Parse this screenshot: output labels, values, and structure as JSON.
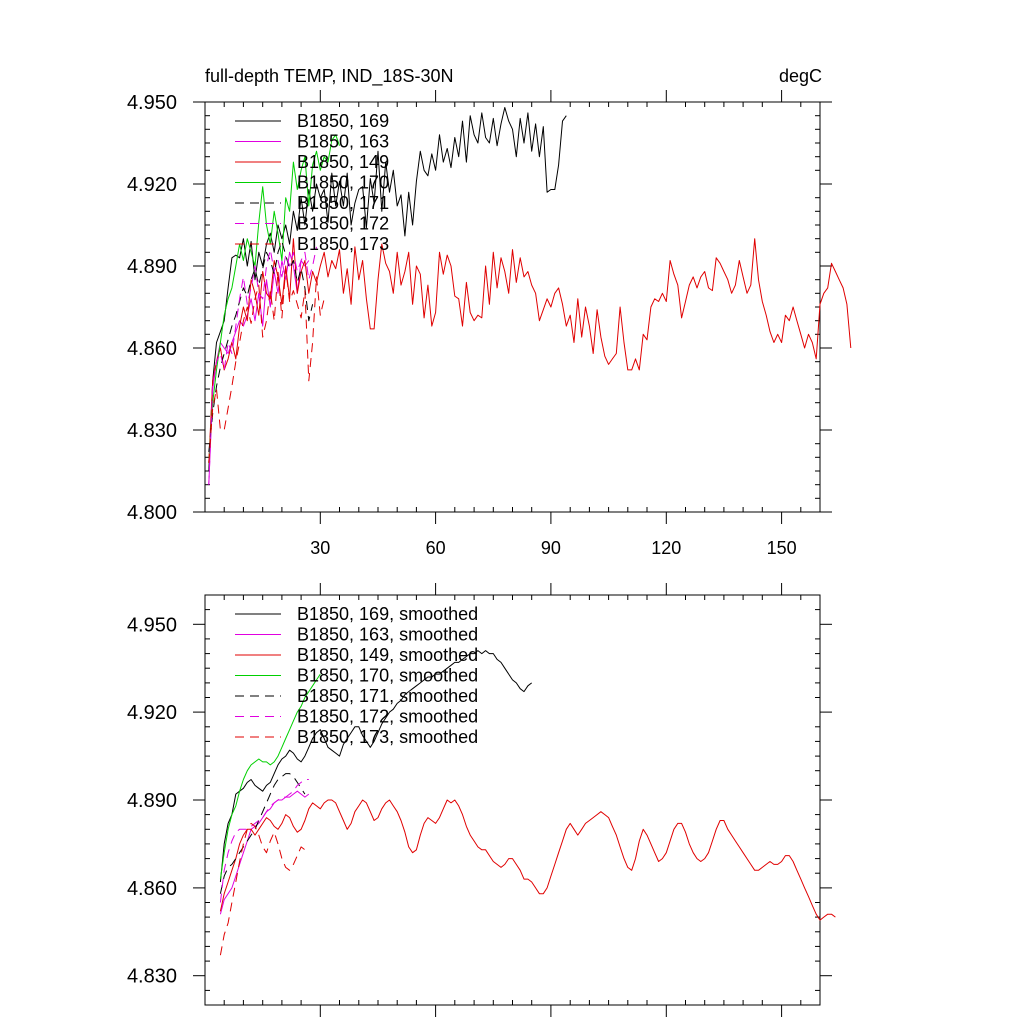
{
  "colors": {
    "black": "#000000",
    "magenta": "#e000e0",
    "red": "#e00000",
    "green": "#00d000"
  },
  "chart_data": [
    {
      "type": "line",
      "title": "full-depth TEMP, IND_18S-30N",
      "units": "degC",
      "xlim": [
        0,
        160
      ],
      "ylim": [
        4.8,
        4.95
      ],
      "xticks": [
        30,
        60,
        90,
        120,
        150
      ],
      "xtick_labels": [
        "30",
        "60",
        "90",
        "120",
        "150"
      ],
      "yticks": [
        4.8,
        4.83,
        4.86,
        4.89,
        4.92,
        4.95
      ],
      "ytick_labels": [
        "4.800",
        "4.830",
        "4.860",
        "4.890",
        "4.920",
        "4.950"
      ],
      "legend_position": "top-left",
      "series": [
        {
          "name": "B1850, 169",
          "color": "#000000",
          "dash": "solid",
          "x0": 1,
          "values": [
            4.815,
            4.848,
            4.862,
            4.866,
            4.87,
            4.882,
            4.893,
            4.894,
            4.893,
            4.9,
            4.89,
            4.899,
            4.885,
            4.895,
            4.89,
            4.898,
            4.902,
            4.895,
            4.905,
            4.9,
            4.905,
            4.898,
            4.91,
            4.903,
            4.915,
            4.905,
            4.918,
            4.91,
            4.92,
            4.915,
            4.918,
            4.906,
            4.924,
            4.912,
            4.921,
            4.912,
            4.924,
            4.905,
            4.913,
            4.918,
            4.919,
            4.904,
            4.922,
            4.913,
            4.932,
            4.91,
            4.928,
            4.917,
            4.925,
            4.912,
            4.916,
            4.901,
            4.917,
            4.905,
            4.921,
            4.932,
            4.925,
            4.923,
            4.931,
            4.925,
            4.938,
            4.928,
            4.933,
            4.926,
            4.937,
            4.93,
            4.943,
            4.928,
            4.945,
            4.938,
            4.935,
            4.946,
            4.937,
            4.935,
            4.944,
            4.934,
            4.942,
            4.948,
            4.943,
            4.94,
            4.93,
            4.944,
            4.935,
            4.946,
            4.932,
            4.942,
            4.93,
            4.941,
            4.917,
            4.918,
            4.918,
            4.927,
            4.943,
            4.945
          ]
        },
        {
          "name": "B1850, 163",
          "color": "#e000e0",
          "dash": "solid",
          "x0": 1,
          "values": [
            4.81,
            4.845,
            4.855,
            4.862,
            4.86,
            4.858,
            4.862,
            4.866,
            4.87,
            4.868,
            4.872,
            4.878,
            4.87,
            4.88,
            4.868,
            4.885,
            4.875,
            4.888,
            4.88,
            4.892,
            4.885,
            4.895,
            4.89,
            4.88,
            4.892,
            4.89,
            4.892
          ]
        },
        {
          "name": "B1850, 149",
          "color": "#e00000",
          "dash": "solid",
          "x0": 1,
          "values": [
            4.818,
            4.848,
            4.855,
            4.86,
            4.852,
            4.856,
            4.862,
            4.856,
            4.868,
            4.875,
            4.87,
            4.885,
            4.88,
            4.872,
            4.888,
            4.88,
            4.878,
            4.892,
            4.886,
            4.876,
            4.89,
            4.878,
            4.9,
            4.88,
            4.888,
            4.892,
            4.88,
            4.888,
            4.884,
            4.89,
            4.895,
            4.886,
            4.892,
            4.889,
            4.896,
            4.88,
            4.889,
            4.876,
            4.897,
            4.885,
            4.892,
            4.878,
            4.867,
            4.867,
            4.885,
            4.898,
            4.891,
            4.888,
            4.88,
            4.895,
            4.883,
            4.888,
            4.895,
            4.876,
            4.89,
            4.887,
            4.871,
            4.883,
            4.868,
            4.873,
            4.895,
            4.887,
            4.894,
            4.89,
            4.879,
            4.878,
            4.868,
            4.884,
            4.873,
            4.87,
            4.872,
            4.871,
            4.89,
            4.876,
            4.895,
            4.882,
            4.893,
            4.888,
            4.88,
            4.896,
            4.884,
            4.893,
            4.886,
            4.888,
            4.883,
            4.88,
            4.87,
            4.874,
            4.878,
            4.875,
            4.88,
            4.882,
            4.876,
            4.868,
            4.872,
            4.862,
            4.878,
            4.864,
            4.875,
            4.868,
            4.858,
            4.874,
            4.864,
            4.857,
            4.854,
            4.856,
            4.858,
            4.875,
            4.862,
            4.852,
            4.852,
            4.856,
            4.852,
            4.865,
            4.863,
            4.875,
            4.878,
            4.877,
            4.88,
            4.877,
            4.892,
            4.887,
            4.883,
            4.871,
            4.877,
            4.883,
            4.886,
            4.882,
            4.886,
            4.888,
            4.882,
            4.881,
            4.893,
            4.891,
            4.888,
            4.885,
            4.88,
            4.883,
            4.892,
            4.886,
            4.88,
            4.883,
            4.9,
            4.885,
            4.877,
            4.872,
            4.866,
            4.862,
            4.865,
            4.862,
            4.872,
            4.87,
            4.875,
            4.87,
            4.865,
            4.86,
            4.865,
            4.862,
            4.856,
            4.876,
            4.88,
            4.882,
            4.891,
            4.888,
            4.885,
            4.882,
            4.876,
            4.86
          ]
        },
        {
          "name": "B1850, 170",
          "color": "#00d000",
          "dash": "solid",
          "x0": 1,
          "values": [
            4.818,
            4.84,
            4.852,
            4.862,
            4.872,
            4.878,
            4.882,
            4.89,
            4.898,
            4.892,
            4.9,
            4.895,
            4.89,
            4.906,
            4.919,
            4.905,
            4.898,
            4.91,
            4.902,
            4.892,
            4.915,
            4.91,
            4.928,
            4.918,
            4.925,
            4.93,
            4.912,
            4.927,
            4.932,
            4.925,
            4.93,
            4.928,
            4.936,
            4.938,
            4.934
          ]
        },
        {
          "name": "B1850, 171",
          "color": "#000000",
          "dash": "dashed",
          "x0": 1,
          "values": [
            4.822,
            4.836,
            4.846,
            4.853,
            4.858,
            4.863,
            4.868,
            4.872,
            4.877,
            4.882,
            4.879,
            4.885,
            4.889,
            4.883,
            4.889,
            4.895,
            4.892,
            4.887,
            4.895,
            4.899,
            4.894,
            4.889,
            4.892,
            4.884,
            4.889,
            4.882,
            4.87,
            4.876
          ]
        },
        {
          "name": "B1850, 172",
          "color": "#e000e0",
          "dash": "dashed",
          "x0": 1,
          "values": [
            4.81,
            4.846,
            4.855,
            4.858,
            4.852,
            4.862,
            4.858,
            4.868,
            4.878,
            4.886,
            4.876,
            4.882,
            4.89,
            4.88,
            4.878,
            4.89,
            4.896,
            4.888,
            4.892,
            4.886,
            4.894,
            4.89,
            4.895,
            4.888,
            4.892,
            4.895,
            4.885,
            4.89,
            4.897
          ]
        },
        {
          "name": "B1850, 173",
          "color": "#e00000",
          "dash": "dashed",
          "x0": 1,
          "values": [
            4.818,
            4.838,
            4.845,
            4.83,
            4.83,
            4.838,
            4.846,
            4.855,
            4.862,
            4.87,
            4.875,
            4.869,
            4.878,
            4.883,
            4.864,
            4.87,
            4.881,
            4.87,
            4.888,
            4.871,
            4.889,
            4.877,
            4.881,
            4.876,
            4.871,
            4.881,
            4.848,
            4.862,
            4.886,
            4.872,
            4.878
          ]
        }
      ]
    },
    {
      "type": "line",
      "title": "",
      "units": "",
      "xlim": [
        0,
        160
      ],
      "ylim": [
        4.82,
        4.96
      ],
      "xticks": [
        30,
        60,
        90,
        120,
        150
      ],
      "xtick_labels": [
        "",
        "",
        "",
        "",
        ""
      ],
      "yticks": [
        4.83,
        4.86,
        4.89,
        4.92,
        4.95
      ],
      "ytick_labels": [
        "4.830",
        "4.860",
        "4.890",
        "4.920",
        "4.950"
      ],
      "legend_position": "top-left",
      "series": [
        {
          "name": "B1850, 169, smoothed",
          "color": "#000000",
          "dash": "solid",
          "x0": 4,
          "values": [
            4.862,
            4.875,
            4.882,
            4.885,
            4.892,
            4.893,
            4.894,
            4.896,
            4.897,
            4.895,
            4.894,
            4.893,
            4.895,
            4.896,
            4.899,
            4.902,
            4.904,
            4.905,
            4.907,
            4.906,
            4.904,
            4.903,
            4.905,
            4.908,
            4.911,
            4.913,
            4.914,
            4.911,
            4.908,
            4.907,
            4.906,
            4.905,
            4.909,
            4.911,
            4.913,
            4.915,
            4.915,
            4.912,
            4.91,
            4.908,
            4.91,
            4.913,
            4.916,
            4.918,
            4.92,
            4.921,
            4.923,
            4.924,
            4.926,
            4.927,
            4.928,
            4.929,
            4.93,
            4.931,
            4.932,
            4.932,
            4.933,
            4.933,
            4.934,
            4.935,
            4.936,
            4.937,
            4.937,
            4.938,
            4.939,
            4.94,
            4.94,
            4.941,
            4.94,
            4.941,
            4.94,
            4.94,
            4.938,
            4.937,
            4.935,
            4.933,
            4.931,
            4.93,
            4.928,
            4.927,
            4.929,
            4.93
          ]
        },
        {
          "name": "B1850, 163, smoothed",
          "color": "#e000e0",
          "dash": "solid",
          "x0": 4,
          "values": [
            4.851,
            4.856,
            4.858,
            4.86,
            4.864,
            4.868,
            4.872,
            4.876,
            4.88,
            4.881,
            4.882,
            4.884,
            4.886,
            4.887,
            4.889,
            4.89,
            4.89,
            4.891,
            4.891,
            4.892,
            4.893,
            4.892,
            4.891,
            4.892
          ]
        },
        {
          "name": "B1850, 149, smoothed",
          "color": "#e00000",
          "dash": "solid",
          "x0": 4,
          "values": [
            4.852,
            4.858,
            4.862,
            4.866,
            4.87,
            4.875,
            4.878,
            4.88,
            4.88,
            4.878,
            4.88,
            4.882,
            4.884,
            4.883,
            4.881,
            4.88,
            4.882,
            4.885,
            4.884,
            4.881,
            4.879,
            4.88,
            4.883,
            4.887,
            4.889,
            4.888,
            4.887,
            4.889,
            4.89,
            4.89,
            4.889,
            4.886,
            4.883,
            4.88,
            4.882,
            4.886,
            4.888,
            4.89,
            4.889,
            4.886,
            4.883,
            4.884,
            4.887,
            4.889,
            4.89,
            4.888,
            4.886,
            4.883,
            4.879,
            4.874,
            4.872,
            4.873,
            4.878,
            4.882,
            4.884,
            4.883,
            4.882,
            4.884,
            4.887,
            4.89,
            4.889,
            4.89,
            4.888,
            4.885,
            4.881,
            4.878,
            4.876,
            4.874,
            4.873,
            4.873,
            4.871,
            4.869,
            4.868,
            4.867,
            4.868,
            4.87,
            4.87,
            4.868,
            4.866,
            4.863,
            4.863,
            4.862,
            4.86,
            4.858,
            4.858,
            4.86,
            4.864,
            4.868,
            4.872,
            4.876,
            4.88,
            4.882,
            4.88,
            4.878,
            4.88,
            4.882,
            4.883,
            4.884,
            4.885,
            4.886,
            4.885,
            4.884,
            4.881,
            4.878,
            4.874,
            4.87,
            4.867,
            4.866,
            4.87,
            4.876,
            4.88,
            4.878,
            4.875,
            4.872,
            4.869,
            4.87,
            4.872,
            4.876,
            4.88,
            4.882,
            4.882,
            4.879,
            4.875,
            4.872,
            4.87,
            4.869,
            4.87,
            4.872,
            4.876,
            4.88,
            4.883,
            4.883,
            4.88,
            4.878,
            4.876,
            4.874,
            4.872,
            4.87,
            4.868,
            4.866,
            4.866,
            4.867,
            4.868,
            4.869,
            4.868,
            4.868,
            4.869,
            4.871,
            4.871,
            4.869,
            4.866,
            4.863,
            4.86,
            4.857,
            4.854,
            4.851,
            4.849,
            4.85,
            4.851,
            4.851,
            4.85
          ]
        },
        {
          "name": "B1850, 170, smoothed",
          "color": "#00d000",
          "dash": "solid",
          "x0": 4,
          "values": [
            4.863,
            4.872,
            4.88,
            4.885,
            4.888,
            4.893,
            4.897,
            4.9,
            4.902,
            4.903,
            4.904,
            4.903,
            4.903,
            4.902,
            4.903,
            4.905,
            4.908,
            4.911,
            4.914,
            4.917,
            4.92,
            4.922,
            4.925,
            4.927,
            4.929,
            4.931,
            4.933
          ]
        },
        {
          "name": "B1850, 171, smoothed",
          "color": "#000000",
          "dash": "dashed",
          "x0": 4,
          "values": [
            4.858,
            4.864,
            4.867,
            4.868,
            4.87,
            4.872,
            4.874,
            4.876,
            4.878,
            4.88,
            4.883,
            4.886,
            4.889,
            4.892,
            4.895,
            4.897,
            4.898,
            4.899,
            4.899,
            4.898,
            4.896,
            4.894,
            4.892
          ]
        },
        {
          "name": "B1850, 172, smoothed",
          "color": "#e000e0",
          "dash": "dashed",
          "x0": 4,
          "values": [
            4.855,
            4.866,
            4.872,
            4.876,
            4.879,
            4.88,
            4.88,
            4.88,
            4.881,
            4.882,
            4.883,
            4.884,
            4.886,
            4.888,
            4.889,
            4.89,
            4.891,
            4.891,
            4.892,
            4.893,
            4.895,
            4.896,
            4.897,
            4.897
          ]
        },
        {
          "name": "B1850, 173, smoothed",
          "color": "#e00000",
          "dash": "dashed",
          "x0": 4,
          "values": [
            4.837,
            4.844,
            4.848,
            4.855,
            4.862,
            4.869,
            4.875,
            4.88,
            4.882,
            4.881,
            4.878,
            4.874,
            4.872,
            4.876,
            4.879,
            4.875,
            4.87,
            4.867,
            4.866,
            4.868,
            4.871,
            4.874,
            4.873
          ]
        }
      ]
    }
  ]
}
